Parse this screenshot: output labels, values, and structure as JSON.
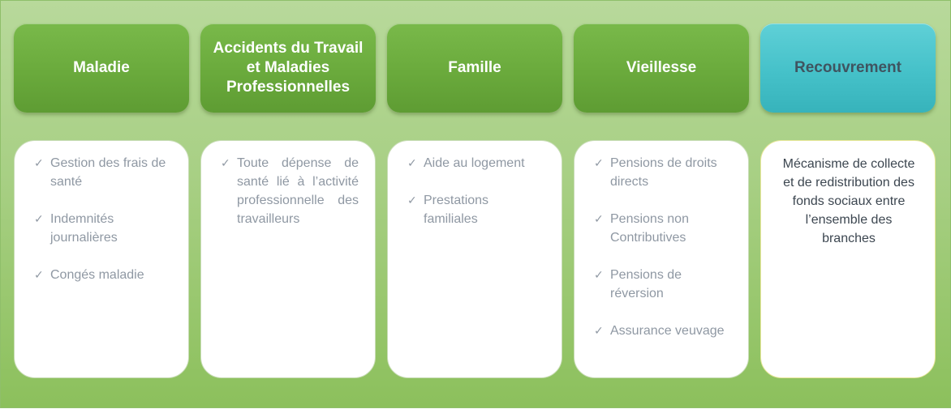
{
  "columns": [
    {
      "title": "Maladie",
      "items": [
        "Gestion des frais de santé",
        "Indemnités journalières",
        "Congés maladie"
      ]
    },
    {
      "title": "Accidents du Travail et Maladies Professionnelles",
      "items": [
        "Toute dépense de santé lié à l’activité professionnelle des travailleurs"
      ]
    },
    {
      "title": "Famille",
      "items": [
        "Aide au logement",
        "Prestations familiales"
      ]
    },
    {
      "title": "Vieillesse",
      "items": [
        "Pensions de droits directs",
        "Pensions non Contributives",
        "Pensions de réversion",
        "Assurance veuvage"
      ]
    },
    {
      "title": "Recouvrement",
      "description": "Mécanisme de collecte et de redistribution des fonds sociaux entre l’ensemble des branches"
    }
  ],
  "colors": {
    "header_green": "#6aaa3c",
    "header_teal": "#45c1c9",
    "background_green": "#a7cf83",
    "item_text": "#8f98a3"
  },
  "icons": {
    "bullet": "checkmark-icon"
  }
}
